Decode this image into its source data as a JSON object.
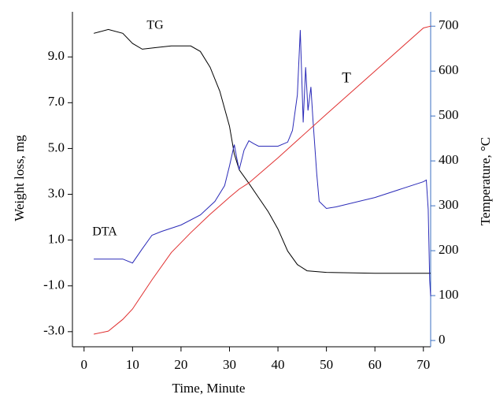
{
  "chart_data": {
    "type": "line",
    "xlabel": "Time, Minute",
    "ylabel": "Weight loss, mg",
    "y2label": "Temperature, °C",
    "xlim": [
      -2.4,
      71.5
    ],
    "xticks": [
      0,
      10,
      20,
      30,
      40,
      50,
      60,
      70
    ],
    "ylim": [
      -3.66,
      10.97
    ],
    "yticks": [
      {
        "value": -3,
        "label": "-3.0"
      },
      {
        "value": -1,
        "label": "-1.0"
      },
      {
        "value": 1,
        "label": "1.0"
      },
      {
        "value": 3,
        "label": "3.0"
      },
      {
        "value": 5,
        "label": "5.0"
      },
      {
        "value": 7,
        "label": "7.0"
      },
      {
        "value": 9,
        "label": "9.0"
      }
    ],
    "y2lim": [
      -14,
      732
    ],
    "y2ticks": [
      0,
      100,
      200,
      300,
      400,
      500,
      600,
      700
    ],
    "axis_color": "#000000",
    "y2_axis_color": "#3b6fc0",
    "series": [
      {
        "name": "TG",
        "color": "#000000",
        "x": [
          2,
          5,
          8,
          10,
          12,
          15,
          18,
          22,
          24,
          26,
          28,
          30,
          31,
          32,
          34,
          36,
          38,
          40,
          42,
          44,
          46,
          50,
          60,
          70,
          71.5
        ],
        "values": [
          10.03,
          10.2,
          10.03,
          9.59,
          9.34,
          9.41,
          9.48,
          9.48,
          9.24,
          8.55,
          7.5,
          5.97,
          4.76,
          4.07,
          3.48,
          2.86,
          2.24,
          1.48,
          0.52,
          -0.07,
          -0.34,
          -0.41,
          -0.45,
          -0.45,
          -0.45
        ]
      },
      {
        "name": "DTA",
        "color": "#2b2bb8",
        "x": [
          2,
          8,
          10,
          12,
          14,
          16,
          20,
          24,
          27,
          29,
          30,
          31,
          31.5,
          32,
          33,
          34,
          35,
          36,
          40,
          42,
          43,
          44,
          44.6,
          45.2,
          45.7,
          46.2,
          46.8,
          47.2,
          48,
          48.5,
          50,
          52,
          60,
          70,
          70.6,
          71,
          71.3,
          71.5
        ],
        "values": [
          0.17,
          0.17,
          0.0,
          0.62,
          1.21,
          1.38,
          1.66,
          2.1,
          2.69,
          3.38,
          4.24,
          5.17,
          4.59,
          4.07,
          4.93,
          5.34,
          5.21,
          5.1,
          5.1,
          5.28,
          5.79,
          7.34,
          10.17,
          6.14,
          8.55,
          6.66,
          7.69,
          6.31,
          3.9,
          2.69,
          2.38,
          2.45,
          2.86,
          3.55,
          3.62,
          2.34,
          -0.76,
          -1.45
        ]
      },
      {
        "name": "T",
        "color": "#e03030",
        "axis": "y2",
        "x": [
          2,
          5,
          8,
          10,
          14,
          18,
          22,
          26,
          30,
          32,
          34,
          40,
          50,
          60,
          70,
          71.5
        ],
        "values": [
          14,
          21,
          47,
          70,
          135,
          196,
          240,
          281,
          319,
          337,
          351,
          407,
          504,
          600,
          696,
          700
        ]
      }
    ]
  }
}
